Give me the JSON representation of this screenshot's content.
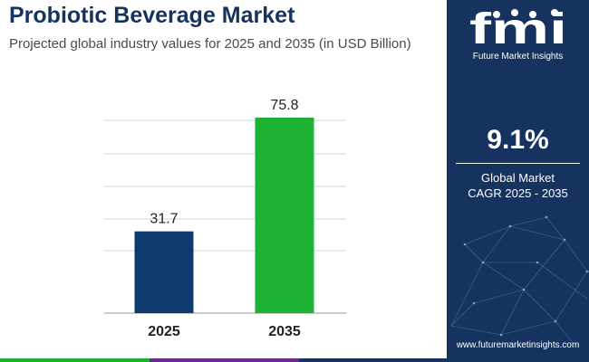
{
  "chart_data": {
    "type": "bar",
    "title": "Probiotic Beverage Market",
    "subtitle": "Projected global industry values for 2025 and 2035 (in USD Billion)",
    "categories": [
      "2025",
      "2035"
    ],
    "values": [
      31.7,
      75.8
    ],
    "value_labels": [
      "31.7",
      "75.8"
    ],
    "bar_colors": [
      "#0f3a6e",
      "#1db233"
    ],
    "ylim": [
      0,
      80
    ],
    "grid": true,
    "xlabel": "",
    "ylabel": ""
  },
  "brand": {
    "logo_mark": "fmi",
    "logo_text": "Future Market Insights",
    "website": "www.futuremarketinsights.com",
    "panel_color": "#16335f"
  },
  "cagr": {
    "value": "9.1%",
    "label_line1": "Global Market",
    "label_line2": "CAGR 2025 - 2035"
  },
  "footer_colors": [
    "#1db233",
    "#6a2c8a",
    "#16335f"
  ]
}
